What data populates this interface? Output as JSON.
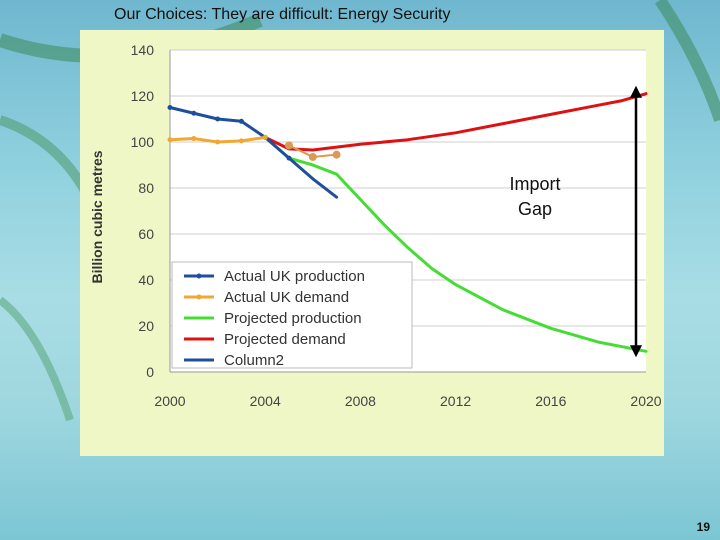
{
  "slide": {
    "title": "Our Choices: They are difficult:  Energy Security",
    "page_number": "19"
  },
  "annotation": {
    "line1": "Import",
    "line2": "Gap"
  },
  "colors": {
    "panel_bg": "#f0f7c6",
    "actual_production": "#1f4e9c",
    "actual_demand": "#f0a830",
    "projected_production": "#44dd33",
    "projected_demand": "#dd1111",
    "column2": "#1f4e9c",
    "orange_points": "#d99a55"
  },
  "chart_data": {
    "type": "line",
    "title": "",
    "xlabel": "",
    "ylabel": "Billion cubic metres",
    "xlim": [
      2000,
      2020
    ],
    "ylim": [
      0,
      140
    ],
    "xticks": [
      2000,
      2004,
      2008,
      2012,
      2016,
      2020
    ],
    "yticks": [
      0,
      20,
      40,
      60,
      80,
      100,
      120,
      140
    ],
    "grid": true,
    "legend_position": "bottom-left",
    "series": [
      {
        "name": "Actual UK production",
        "color": "#1f4e9c",
        "marker": true,
        "x": [
          2000,
          2001,
          2002,
          2003,
          2004,
          2005
        ],
        "y": [
          115,
          112.5,
          110,
          109,
          102,
          93
        ]
      },
      {
        "name": "Actual UK demand",
        "color": "#f0a830",
        "marker": true,
        "x": [
          2000,
          2001,
          2002,
          2003,
          2004
        ],
        "y": [
          101,
          101.5,
          100,
          100.5,
          102
        ]
      },
      {
        "name": "Projected production",
        "color": "#44dd33",
        "marker": false,
        "x": [
          2004,
          2005,
          2006,
          2007,
          2008,
          2009,
          2010,
          2011,
          2012,
          2014,
          2016,
          2018,
          2019,
          2020
        ],
        "y": [
          102,
          93,
          90,
          86,
          75,
          64,
          54,
          45,
          38,
          27,
          19,
          13,
          11,
          9
        ]
      },
      {
        "name": "Projected demand",
        "color": "#dd1111",
        "marker": false,
        "x": [
          2004,
          2005,
          2006,
          2008,
          2010,
          2012,
          2014,
          2016,
          2018,
          2019,
          2020
        ],
        "y": [
          102,
          97,
          96.5,
          99,
          101,
          104,
          108,
          112,
          116,
          118,
          121
        ]
      },
      {
        "name": "Column2",
        "color": "#1f4e9c",
        "marker": false,
        "x": [
          2005,
          2006,
          2007
        ],
        "y": [
          93,
          84,
          76
        ]
      }
    ],
    "extra_points": {
      "color": "#d99a55",
      "x": [
        2005,
        2006,
        2007
      ],
      "y": [
        98.5,
        93.5,
        94.5
      ]
    }
  }
}
